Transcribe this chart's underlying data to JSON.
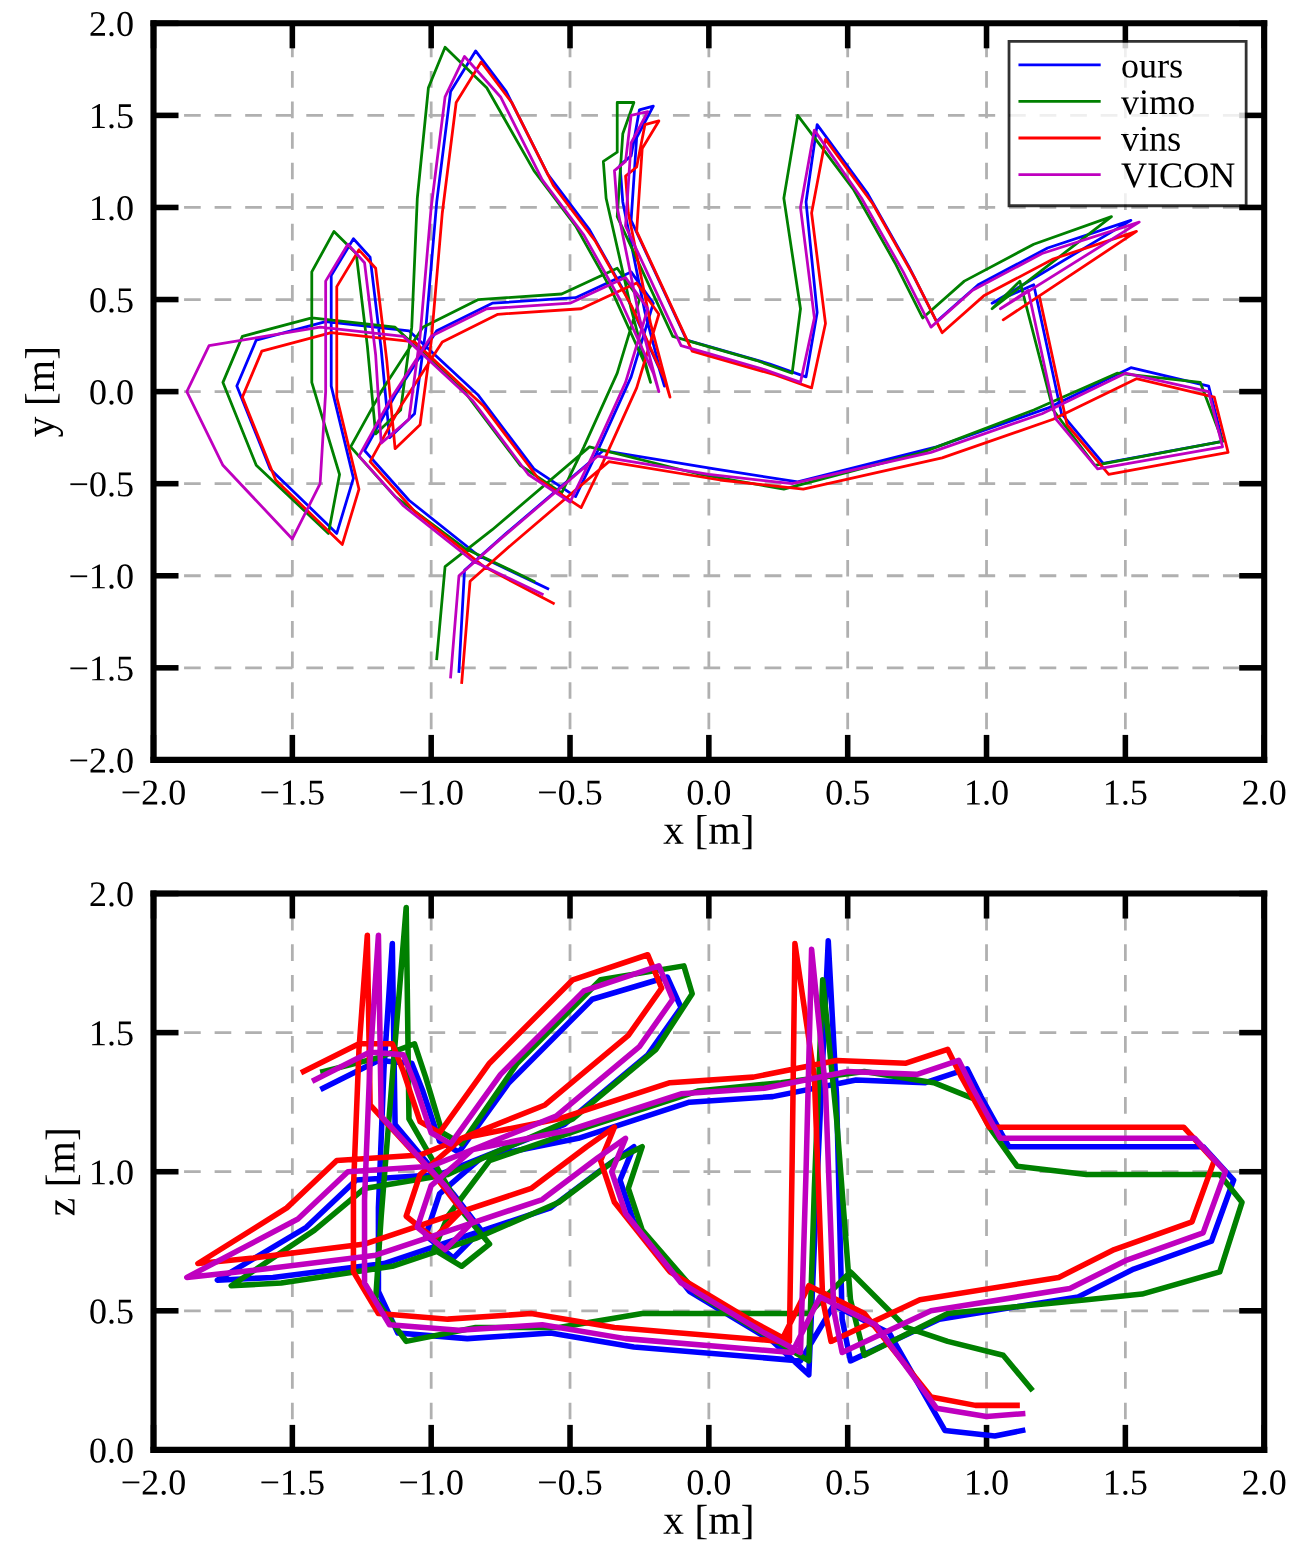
{
  "chart_data": [
    {
      "type": "line",
      "xlabel": "x [m]",
      "ylabel": "y [m]",
      "legend": "top right",
      "grid": true,
      "marker": "none",
      "xlim": [
        -2.0,
        2.0
      ],
      "ylim": [
        -2.0,
        2.0
      ],
      "xticks": [
        {
          "value": -2.0,
          "label": "−2.0"
        },
        {
          "value": -1.5,
          "label": "−1.5"
        },
        {
          "value": -1.0,
          "label": "−1.0"
        },
        {
          "value": -0.5,
          "label": "−0.5"
        },
        {
          "value": 0.0,
          "label": "0.0"
        },
        {
          "value": 0.5,
          "label": "0.5"
        },
        {
          "value": 1.0,
          "label": "1.0"
        },
        {
          "value": 1.5,
          "label": "1.5"
        },
        {
          "value": 2.0,
          "label": "2.0"
        }
      ],
      "yticks": [
        {
          "value": -2.0,
          "label": "−2.0"
        },
        {
          "value": -1.5,
          "label": "−1.5"
        },
        {
          "value": -1.0,
          "label": "−1.0"
        },
        {
          "value": -0.5,
          "label": "−0.5"
        },
        {
          "value": 0.0,
          "label": "0.0"
        },
        {
          "value": 0.5,
          "label": "0.5"
        },
        {
          "value": 1.0,
          "label": "1.0"
        },
        {
          "value": 1.5,
          "label": "1.5"
        },
        {
          "value": 2.0,
          "label": "2.0"
        }
      ],
      "series": [
        {
          "name": "ours",
          "color": "#0000ff",
          "x": [
            -0.58,
            -0.83,
            -1.08,
            -1.24,
            -1.13,
            -0.98,
            -0.78,
            -0.48,
            -0.28,
            -0.2,
            -0.28,
            -0.4,
            -0.48,
            -0.63,
            -0.83,
            -1.08,
            -1.38,
            -1.63,
            -1.7,
            -1.58,
            -1.34,
            -1.28,
            -1.36,
            -1.36,
            -1.28,
            -1.22,
            -1.18,
            -1.15,
            -1.06,
            -1.02,
            -0.98,
            -0.93,
            -0.84,
            -0.73,
            -0.58,
            -0.43,
            -0.3,
            -0.18,
            -0.16,
            -0.23,
            -0.31,
            -0.32,
            -0.28,
            -0.25,
            -0.2,
            -0.26,
            -0.28,
            -0.08,
            0.22,
            0.35,
            0.39,
            0.35,
            0.39,
            0.57,
            0.72,
            0.82,
            0.97,
            1.22,
            1.52,
            1.02,
            1.17,
            1.27,
            1.42,
            1.85,
            1.8,
            1.52,
            1.22,
            0.82,
            0.32,
            0.02,
            -0.38,
            -0.73,
            -0.88,
            -0.9
          ],
          "values": [
            -1.07,
            -0.89,
            -0.59,
            -0.32,
            -0.02,
            0.33,
            0.48,
            0.51,
            0.65,
            0.48,
            0.08,
            -0.32,
            -0.57,
            -0.42,
            -0.02,
            0.33,
            0.38,
            0.28,
            0.03,
            -0.42,
            -0.77,
            -0.47,
            0.03,
            0.63,
            0.83,
            0.73,
            0.23,
            -0.25,
            -0.12,
            0.33,
            1.03,
            1.63,
            1.85,
            1.63,
            1.18,
            0.88,
            0.53,
            0.13,
            0.03,
            0.43,
            1.03,
            1.23,
            1.28,
            1.53,
            1.55,
            1.38,
            0.93,
            0.28,
            0.15,
            0.08,
            0.43,
            1.03,
            1.45,
            1.08,
            0.68,
            0.38,
            0.58,
            0.78,
            0.93,
            0.48,
            0.58,
            -0.12,
            -0.39,
            -0.27,
            0.03,
            0.13,
            -0.09,
            -0.3,
            -0.49,
            -0.42,
            -0.32,
            -0.77,
            -0.97,
            -1.52
          ]
        },
        {
          "name": "vimo",
          "color": "#008000",
          "x": [
            -0.63,
            -0.88,
            -1.13,
            -1.29,
            -1.18,
            -1.03,
            -0.83,
            -0.53,
            -0.33,
            -0.25,
            -0.33,
            -0.45,
            -0.53,
            -0.68,
            -0.88,
            -1.13,
            -1.43,
            -1.68,
            -1.75,
            -1.63,
            -1.37,
            -1.33,
            -1.43,
            -1.43,
            -1.35,
            -1.27,
            -1.23,
            -1.2,
            -1.11,
            -1.07,
            -1.05,
            -1.01,
            -0.95,
            -0.8,
            -0.63,
            -0.48,
            -0.35,
            -0.23,
            -0.21,
            -0.28,
            -0.37,
            -0.38,
            -0.33,
            -0.33,
            -0.27,
            -0.31,
            -0.33,
            -0.13,
            0.17,
            0.3,
            0.33,
            0.27,
            0.32,
            0.52,
            0.67,
            0.77,
            0.92,
            1.17,
            1.45,
            1.02,
            1.12,
            1.24,
            1.39,
            1.85,
            1.77,
            1.47,
            1.17,
            0.77,
            0.27,
            -0.03,
            -0.43,
            -0.78,
            -0.95,
            -0.98
          ],
          "values": [
            -1.03,
            -0.85,
            -0.57,
            -0.3,
            0.0,
            0.35,
            0.5,
            0.53,
            0.67,
            0.5,
            0.1,
            -0.3,
            -0.55,
            -0.4,
            0.0,
            0.35,
            0.4,
            0.3,
            0.05,
            -0.4,
            -0.77,
            -0.45,
            0.05,
            0.65,
            0.87,
            0.75,
            0.25,
            -0.23,
            -0.1,
            0.35,
            1.05,
            1.65,
            1.87,
            1.65,
            1.2,
            0.9,
            0.55,
            0.15,
            0.05,
            0.45,
            1.05,
            1.25,
            1.3,
            1.57,
            1.57,
            1.4,
            0.95,
            0.3,
            0.17,
            0.1,
            0.45,
            1.05,
            1.5,
            1.1,
            0.7,
            0.4,
            0.6,
            0.8,
            0.95,
            0.45,
            0.6,
            -0.1,
            -0.4,
            -0.27,
            0.05,
            0.1,
            -0.1,
            -0.33,
            -0.53,
            -0.45,
            -0.3,
            -0.75,
            -0.95,
            -1.45
          ]
        },
        {
          "name": "vins",
          "color": "#ff0000",
          "x": [
            -0.56,
            -0.81,
            -1.06,
            -1.22,
            -1.11,
            -0.96,
            -0.76,
            -0.46,
            -0.26,
            -0.18,
            -0.26,
            -0.38,
            -0.46,
            -0.61,
            -0.81,
            -1.06,
            -1.36,
            -1.61,
            -1.68,
            -1.56,
            -1.32,
            -1.26,
            -1.34,
            -1.34,
            -1.26,
            -1.2,
            -1.16,
            -1.13,
            -1.04,
            -1.0,
            -0.96,
            -0.91,
            -0.82,
            -0.71,
            -0.56,
            -0.41,
            -0.28,
            -0.16,
            -0.14,
            -0.21,
            -0.29,
            -0.3,
            -0.26,
            -0.23,
            -0.18,
            -0.24,
            -0.26,
            -0.06,
            0.24,
            0.37,
            0.42,
            0.37,
            0.42,
            0.59,
            0.74,
            0.84,
            0.99,
            1.24,
            1.54,
            1.06,
            1.19,
            1.29,
            1.44,
            1.87,
            1.82,
            1.54,
            1.24,
            0.84,
            0.34,
            0.04,
            -0.36,
            -0.71,
            -0.86,
            -0.89
          ],
          "values": [
            -1.15,
            -0.95,
            -0.65,
            -0.38,
            -0.08,
            0.27,
            0.42,
            0.45,
            0.59,
            0.42,
            0.02,
            -0.38,
            -0.63,
            -0.48,
            -0.08,
            0.27,
            0.32,
            0.22,
            -0.03,
            -0.48,
            -0.83,
            -0.53,
            -0.03,
            0.57,
            0.77,
            0.67,
            0.17,
            -0.31,
            -0.18,
            0.27,
            0.97,
            1.57,
            1.79,
            1.57,
            1.12,
            0.82,
            0.47,
            0.07,
            -0.03,
            0.37,
            0.97,
            1.17,
            1.22,
            1.45,
            1.47,
            1.32,
            0.87,
            0.22,
            0.09,
            0.02,
            0.37,
            0.97,
            1.37,
            1.02,
            0.62,
            0.32,
            0.52,
            0.72,
            0.87,
            0.39,
            0.52,
            -0.18,
            -0.45,
            -0.33,
            -0.03,
            0.07,
            -0.15,
            -0.36,
            -0.53,
            -0.48,
            -0.38,
            -0.83,
            -1.03,
            -1.58
          ]
        },
        {
          "name": "VICON",
          "color": "#bf00bf",
          "x": [
            -0.6,
            -0.85,
            -1.1,
            -1.26,
            -1.15,
            -1.0,
            -0.8,
            -0.5,
            -0.3,
            -0.22,
            -0.3,
            -0.42,
            -0.5,
            -0.65,
            -0.85,
            -1.1,
            -1.4,
            -1.8,
            -1.88,
            -1.75,
            -1.5,
            -1.4,
            -1.38,
            -1.38,
            -1.3,
            -1.24,
            -1.2,
            -1.18,
            -1.08,
            -1.04,
            -1.0,
            -0.95,
            -0.88,
            -0.75,
            -0.6,
            -0.45,
            -0.32,
            -0.2,
            -0.18,
            -0.25,
            -0.33,
            -0.34,
            -0.3,
            -0.28,
            -0.22,
            -0.28,
            -0.3,
            -0.1,
            0.2,
            0.33,
            0.38,
            0.33,
            0.38,
            0.55,
            0.7,
            0.8,
            0.95,
            1.2,
            1.55,
            1.05,
            1.15,
            1.25,
            1.4,
            1.85,
            1.8,
            1.5,
            1.2,
            0.8,
            0.3,
            0.0,
            -0.4,
            -0.75,
            -0.9,
            -0.93
          ],
          "values": [
            -1.1,
            -0.92,
            -0.62,
            -0.35,
            -0.05,
            0.3,
            0.45,
            0.48,
            0.62,
            0.45,
            0.05,
            -0.35,
            -0.6,
            -0.45,
            -0.05,
            0.3,
            0.35,
            0.25,
            0.0,
            -0.4,
            -0.8,
            -0.5,
            0.0,
            0.6,
            0.8,
            0.7,
            0.2,
            -0.28,
            -0.15,
            0.3,
            1.0,
            1.6,
            1.82,
            1.6,
            1.15,
            0.85,
            0.5,
            0.1,
            0.0,
            0.4,
            1.0,
            1.2,
            1.25,
            1.5,
            1.52,
            1.35,
            0.9,
            0.25,
            0.12,
            0.05,
            0.4,
            1.0,
            1.42,
            1.05,
            0.65,
            0.35,
            0.55,
            0.75,
            0.92,
            0.45,
            0.55,
            -0.15,
            -0.42,
            -0.3,
            0.0,
            0.1,
            -0.12,
            -0.33,
            -0.5,
            -0.45,
            -0.35,
            -0.8,
            -1.0,
            -1.55
          ]
        }
      ]
    },
    {
      "type": "line",
      "xlabel": "x [m]",
      "ylabel": "z [m]",
      "grid": true,
      "marker": "none",
      "xlim": [
        -2.0,
        2.0
      ],
      "ylim": [
        0.0,
        2.0
      ],
      "xticks": [
        {
          "value": -2.0,
          "label": "−2.0"
        },
        {
          "value": -1.5,
          "label": "−1.5"
        },
        {
          "value": -1.0,
          "label": "−1.0"
        },
        {
          "value": -0.5,
          "label": "−0.5"
        },
        {
          "value": 0.0,
          "label": "0.0"
        },
        {
          "value": 0.5,
          "label": "0.5"
        },
        {
          "value": 1.0,
          "label": "1.0"
        },
        {
          "value": 1.5,
          "label": "1.5"
        },
        {
          "value": 2.0,
          "label": "2.0"
        }
      ],
      "yticks": [
        {
          "value": 0.0,
          "label": "0.0"
        },
        {
          "value": 0.5,
          "label": "0.5"
        },
        {
          "value": 1.0,
          "label": "1.0"
        },
        {
          "value": 1.5,
          "label": "1.5"
        },
        {
          "value": 2.0,
          "label": "2.0"
        }
      ],
      "series": [
        {
          "color": "#0000ff",
          "x": [
            -1.39,
            -1.19,
            -1.07,
            -1.03,
            -0.97,
            -0.9,
            -0.72,
            -0.42,
            -0.15,
            -0.1,
            -0.22,
            -0.52,
            -0.82,
            -0.97,
            -1.27,
            -1.45,
            -1.77,
            -1.57,
            -1.17,
            -0.87,
            -0.57,
            -0.37,
            -0.27,
            -0.32,
            -0.27,
            -0.07,
            0.23,
            0.36,
            0.39,
            0.43,
            0.46,
            0.48,
            0.51,
            0.83,
            1.33,
            1.53,
            1.81,
            1.89,
            1.78,
            1.33,
            1.08,
            0.98,
            0.93,
            0.78,
            0.53,
            0.23,
            -0.07,
            -0.47,
            -0.82,
            -0.97,
            -1.02,
            -0.92,
            -0.82,
            -0.92,
            -1.13,
            -1.14,
            -1.17,
            -1.19,
            -1.19,
            -1.12,
            -0.87,
            -0.57,
            -0.27,
            0.33,
            0.45,
            0.65,
            0.85,
            1.03,
            1.13
          ],
          "values": [
            1.3,
            1.4,
            1.39,
            1.29,
            1.11,
            1.07,
            1.32,
            1.62,
            1.7,
            1.59,
            1.42,
            1.17,
            1.05,
            0.99,
            0.97,
            0.8,
            0.61,
            0.62,
            0.67,
            0.77,
            0.87,
            1.02,
            1.09,
            0.97,
            0.82,
            0.57,
            0.39,
            0.27,
            0.97,
            1.83,
            1.27,
            0.47,
            0.32,
            0.47,
            0.55,
            0.65,
            0.75,
            0.97,
            1.09,
            1.09,
            1.09,
            1.27,
            1.37,
            1.32,
            1.33,
            1.27,
            1.25,
            1.12,
            1.05,
            0.92,
            0.77,
            0.69,
            0.79,
            0.92,
            1.17,
            1.82,
            1.37,
            0.87,
            0.57,
            0.42,
            0.4,
            0.42,
            0.37,
            0.32,
            0.52,
            0.42,
            0.07,
            0.05,
            0.07
          ]
        },
        {
          "color": "#008000",
          "x": [
            -1.39,
            -1.19,
            -1.06,
            -1.02,
            -0.96,
            -0.89,
            -0.69,
            -0.39,
            -0.09,
            -0.06,
            -0.19,
            -0.49,
            -0.79,
            -0.94,
            -1.24,
            -1.42,
            -1.72,
            -1.54,
            -1.14,
            -0.84,
            -0.54,
            -0.34,
            -0.24,
            -0.29,
            -0.24,
            -0.04,
            0.26,
            0.36,
            0.38,
            0.41,
            0.46,
            0.51,
            0.56,
            0.86,
            1.36,
            1.56,
            1.84,
            1.92,
            1.84,
            1.36,
            1.11,
            1.01,
            0.96,
            0.81,
            0.56,
            0.26,
            -0.04,
            -0.44,
            -0.79,
            -0.94,
            -0.99,
            -0.89,
            -0.79,
            -0.89,
            -1.08,
            -1.09,
            -1.14,
            -1.18,
            -1.2,
            -1.09,
            -0.84,
            -0.54,
            -0.24,
            0.36,
            0.51,
            0.71,
            0.86,
            1.06,
            1.16
          ],
          "values": [
            1.36,
            1.41,
            1.46,
            1.34,
            1.14,
            1.1,
            1.39,
            1.69,
            1.74,
            1.64,
            1.44,
            1.19,
            1.06,
            0.99,
            0.94,
            0.79,
            0.59,
            0.6,
            0.66,
            0.76,
            0.89,
            1.04,
            1.09,
            0.94,
            0.79,
            0.56,
            0.38,
            0.32,
            0.94,
            1.69,
            1.19,
            0.54,
            0.34,
            0.49,
            0.54,
            0.56,
            0.64,
            0.89,
            0.99,
            0.99,
            1.02,
            1.16,
            1.26,
            1.32,
            1.36,
            1.32,
            1.29,
            1.16,
            1.04,
            0.84,
            0.72,
            0.66,
            0.74,
            0.86,
            1.19,
            1.95,
            1.34,
            0.84,
            0.54,
            0.39,
            0.44,
            0.44,
            0.49,
            0.49,
            0.64,
            0.44,
            0.39,
            0.34,
            0.22
          ]
        },
        {
          "color": "#ff0000",
          "x": [
            -1.46,
            -1.26,
            -1.14,
            -1.1,
            -1.04,
            -0.97,
            -0.79,
            -0.49,
            -0.22,
            -0.17,
            -0.29,
            -0.59,
            -0.89,
            -1.04,
            -1.34,
            -1.52,
            -1.84,
            -1.64,
            -1.24,
            -0.94,
            -0.64,
            -0.44,
            -0.34,
            -0.39,
            -0.34,
            -0.14,
            0.16,
            0.29,
            0.3,
            0.31,
            0.38,
            0.41,
            0.44,
            0.76,
            1.26,
            1.46,
            1.74,
            1.82,
            1.71,
            1.26,
            1.01,
            0.91,
            0.86,
            0.71,
            0.46,
            0.16,
            -0.14,
            -0.54,
            -0.89,
            -1.04,
            -1.09,
            -0.99,
            -0.89,
            -0.99,
            -1.22,
            -1.23,
            -1.26,
            -1.28,
            -1.28,
            -1.19,
            -0.94,
            -0.64,
            -0.34,
            0.26,
            0.36,
            0.56,
            0.8,
            0.96,
            1.11
          ],
          "values": [
            1.36,
            1.46,
            1.46,
            1.36,
            1.18,
            1.14,
            1.39,
            1.69,
            1.78,
            1.66,
            1.49,
            1.24,
            1.12,
            1.06,
            1.04,
            0.87,
            0.67,
            0.69,
            0.74,
            0.84,
            0.94,
            1.09,
            1.16,
            1.04,
            0.89,
            0.64,
            0.46,
            0.39,
            1.04,
            1.82,
            1.34,
            0.54,
            0.39,
            0.54,
            0.62,
            0.72,
            0.82,
            1.04,
            1.16,
            1.16,
            1.16,
            1.34,
            1.44,
            1.39,
            1.4,
            1.34,
            1.32,
            1.19,
            1.12,
            0.99,
            0.84,
            0.76,
            0.86,
            0.99,
            1.24,
            1.85,
            1.44,
            0.94,
            0.64,
            0.49,
            0.47,
            0.49,
            0.44,
            0.39,
            0.59,
            0.49,
            0.19,
            0.16,
            0.16
          ]
        },
        {
          "color": "#bf00bf",
          "x": [
            -1.42,
            -1.22,
            -1.1,
            -1.06,
            -1.0,
            -0.93,
            -0.75,
            -0.45,
            -0.18,
            -0.13,
            -0.25,
            -0.55,
            -0.85,
            -1.0,
            -1.3,
            -1.48,
            -1.88,
            -1.6,
            -1.2,
            -0.9,
            -0.6,
            -0.4,
            -0.3,
            -0.35,
            -0.3,
            -0.1,
            0.2,
            0.33,
            0.35,
            0.37,
            0.42,
            0.45,
            0.48,
            0.8,
            1.3,
            1.5,
            1.78,
            1.86,
            1.75,
            1.3,
            1.05,
            0.95,
            0.9,
            0.75,
            0.5,
            0.2,
            -0.1,
            -0.5,
            -0.85,
            -1.0,
            -1.05,
            -0.95,
            -0.85,
            -0.95,
            -1.18,
            -1.19,
            -1.22,
            -1.24,
            -1.24,
            -1.15,
            -0.9,
            -0.6,
            -0.3,
            0.3,
            0.4,
            0.6,
            0.82,
            1.0,
            1.13
          ],
          "values": [
            1.33,
            1.43,
            1.42,
            1.32,
            1.14,
            1.1,
            1.35,
            1.65,
            1.74,
            1.62,
            1.45,
            1.2,
            1.08,
            1.02,
            1.0,
            0.83,
            0.62,
            0.65,
            0.7,
            0.8,
            0.9,
            1.05,
            1.12,
            1.0,
            0.85,
            0.6,
            0.42,
            0.35,
            1.0,
            1.8,
            1.3,
            0.5,
            0.35,
            0.5,
            0.58,
            0.68,
            0.78,
            1.0,
            1.12,
            1.12,
            1.12,
            1.3,
            1.4,
            1.35,
            1.36,
            1.3,
            1.28,
            1.15,
            1.08,
            0.95,
            0.8,
            0.72,
            0.82,
            0.95,
            1.2,
            1.85,
            1.4,
            0.9,
            0.6,
            0.45,
            0.43,
            0.45,
            0.4,
            0.35,
            0.55,
            0.45,
            0.15,
            0.12,
            0.13
          ]
        }
      ]
    }
  ]
}
